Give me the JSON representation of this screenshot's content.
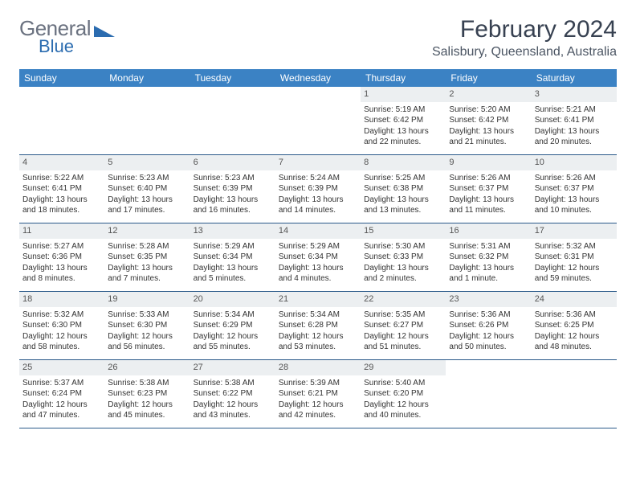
{
  "logo": {
    "general": "General",
    "blue": "Blue"
  },
  "title": "February 2024",
  "location": "Salisbury, Queensland, Australia",
  "colors": {
    "header_bg": "#3b82c4",
    "header_text": "#ffffff",
    "daynum_bg": "#eceff1",
    "row_border": "#2b5a8a",
    "text": "#333333",
    "logo_gray": "#6b7280",
    "logo_blue": "#2b6cb0"
  },
  "typography": {
    "title_fontsize": 30,
    "location_fontsize": 16,
    "dow_fontsize": 12,
    "daynum_fontsize": 11,
    "detail_fontsize": 10
  },
  "dow": [
    "Sunday",
    "Monday",
    "Tuesday",
    "Wednesday",
    "Thursday",
    "Friday",
    "Saturday"
  ],
  "weeks": [
    [
      {
        "num": "",
        "sunrise": "",
        "sunset": "",
        "daylight": ""
      },
      {
        "num": "",
        "sunrise": "",
        "sunset": "",
        "daylight": ""
      },
      {
        "num": "",
        "sunrise": "",
        "sunset": "",
        "daylight": ""
      },
      {
        "num": "",
        "sunrise": "",
        "sunset": "",
        "daylight": ""
      },
      {
        "num": "1",
        "sunrise": "Sunrise: 5:19 AM",
        "sunset": "Sunset: 6:42 PM",
        "daylight": "Daylight: 13 hours and 22 minutes."
      },
      {
        "num": "2",
        "sunrise": "Sunrise: 5:20 AM",
        "sunset": "Sunset: 6:42 PM",
        "daylight": "Daylight: 13 hours and 21 minutes."
      },
      {
        "num": "3",
        "sunrise": "Sunrise: 5:21 AM",
        "sunset": "Sunset: 6:41 PM",
        "daylight": "Daylight: 13 hours and 20 minutes."
      }
    ],
    [
      {
        "num": "4",
        "sunrise": "Sunrise: 5:22 AM",
        "sunset": "Sunset: 6:41 PM",
        "daylight": "Daylight: 13 hours and 18 minutes."
      },
      {
        "num": "5",
        "sunrise": "Sunrise: 5:23 AM",
        "sunset": "Sunset: 6:40 PM",
        "daylight": "Daylight: 13 hours and 17 minutes."
      },
      {
        "num": "6",
        "sunrise": "Sunrise: 5:23 AM",
        "sunset": "Sunset: 6:39 PM",
        "daylight": "Daylight: 13 hours and 16 minutes."
      },
      {
        "num": "7",
        "sunrise": "Sunrise: 5:24 AM",
        "sunset": "Sunset: 6:39 PM",
        "daylight": "Daylight: 13 hours and 14 minutes."
      },
      {
        "num": "8",
        "sunrise": "Sunrise: 5:25 AM",
        "sunset": "Sunset: 6:38 PM",
        "daylight": "Daylight: 13 hours and 13 minutes."
      },
      {
        "num": "9",
        "sunrise": "Sunrise: 5:26 AM",
        "sunset": "Sunset: 6:37 PM",
        "daylight": "Daylight: 13 hours and 11 minutes."
      },
      {
        "num": "10",
        "sunrise": "Sunrise: 5:26 AM",
        "sunset": "Sunset: 6:37 PM",
        "daylight": "Daylight: 13 hours and 10 minutes."
      }
    ],
    [
      {
        "num": "11",
        "sunrise": "Sunrise: 5:27 AM",
        "sunset": "Sunset: 6:36 PM",
        "daylight": "Daylight: 13 hours and 8 minutes."
      },
      {
        "num": "12",
        "sunrise": "Sunrise: 5:28 AM",
        "sunset": "Sunset: 6:35 PM",
        "daylight": "Daylight: 13 hours and 7 minutes."
      },
      {
        "num": "13",
        "sunrise": "Sunrise: 5:29 AM",
        "sunset": "Sunset: 6:34 PM",
        "daylight": "Daylight: 13 hours and 5 minutes."
      },
      {
        "num": "14",
        "sunrise": "Sunrise: 5:29 AM",
        "sunset": "Sunset: 6:34 PM",
        "daylight": "Daylight: 13 hours and 4 minutes."
      },
      {
        "num": "15",
        "sunrise": "Sunrise: 5:30 AM",
        "sunset": "Sunset: 6:33 PM",
        "daylight": "Daylight: 13 hours and 2 minutes."
      },
      {
        "num": "16",
        "sunrise": "Sunrise: 5:31 AM",
        "sunset": "Sunset: 6:32 PM",
        "daylight": "Daylight: 13 hours and 1 minute."
      },
      {
        "num": "17",
        "sunrise": "Sunrise: 5:32 AM",
        "sunset": "Sunset: 6:31 PM",
        "daylight": "Daylight: 12 hours and 59 minutes."
      }
    ],
    [
      {
        "num": "18",
        "sunrise": "Sunrise: 5:32 AM",
        "sunset": "Sunset: 6:30 PM",
        "daylight": "Daylight: 12 hours and 58 minutes."
      },
      {
        "num": "19",
        "sunrise": "Sunrise: 5:33 AM",
        "sunset": "Sunset: 6:30 PM",
        "daylight": "Daylight: 12 hours and 56 minutes."
      },
      {
        "num": "20",
        "sunrise": "Sunrise: 5:34 AM",
        "sunset": "Sunset: 6:29 PM",
        "daylight": "Daylight: 12 hours and 55 minutes."
      },
      {
        "num": "21",
        "sunrise": "Sunrise: 5:34 AM",
        "sunset": "Sunset: 6:28 PM",
        "daylight": "Daylight: 12 hours and 53 minutes."
      },
      {
        "num": "22",
        "sunrise": "Sunrise: 5:35 AM",
        "sunset": "Sunset: 6:27 PM",
        "daylight": "Daylight: 12 hours and 51 minutes."
      },
      {
        "num": "23",
        "sunrise": "Sunrise: 5:36 AM",
        "sunset": "Sunset: 6:26 PM",
        "daylight": "Daylight: 12 hours and 50 minutes."
      },
      {
        "num": "24",
        "sunrise": "Sunrise: 5:36 AM",
        "sunset": "Sunset: 6:25 PM",
        "daylight": "Daylight: 12 hours and 48 minutes."
      }
    ],
    [
      {
        "num": "25",
        "sunrise": "Sunrise: 5:37 AM",
        "sunset": "Sunset: 6:24 PM",
        "daylight": "Daylight: 12 hours and 47 minutes."
      },
      {
        "num": "26",
        "sunrise": "Sunrise: 5:38 AM",
        "sunset": "Sunset: 6:23 PM",
        "daylight": "Daylight: 12 hours and 45 minutes."
      },
      {
        "num": "27",
        "sunrise": "Sunrise: 5:38 AM",
        "sunset": "Sunset: 6:22 PM",
        "daylight": "Daylight: 12 hours and 43 minutes."
      },
      {
        "num": "28",
        "sunrise": "Sunrise: 5:39 AM",
        "sunset": "Sunset: 6:21 PM",
        "daylight": "Daylight: 12 hours and 42 minutes."
      },
      {
        "num": "29",
        "sunrise": "Sunrise: 5:40 AM",
        "sunset": "Sunset: 6:20 PM",
        "daylight": "Daylight: 12 hours and 40 minutes."
      },
      {
        "num": "",
        "sunrise": "",
        "sunset": "",
        "daylight": ""
      },
      {
        "num": "",
        "sunrise": "",
        "sunset": "",
        "daylight": ""
      }
    ]
  ]
}
